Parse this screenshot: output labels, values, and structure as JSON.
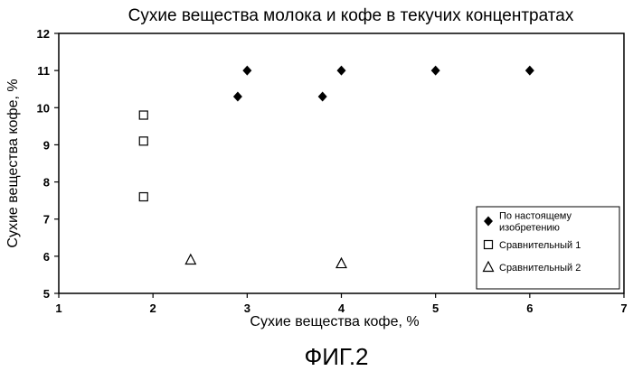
{
  "chart_data": {
    "type": "scatter",
    "title": "Сухие вещества молока и кофе в текучих концентратах",
    "xlabel": "Сухие вещества кофе, %",
    "ylabel": "Сухие вещества кофе, %",
    "xlim": [
      1,
      7
    ],
    "ylim": [
      5,
      12
    ],
    "x_ticks": [
      "1",
      "2",
      "3",
      "4",
      "5",
      "6",
      "7"
    ],
    "y_ticks": [
      "5",
      "6",
      "7",
      "8",
      "9",
      "10",
      "11",
      "12"
    ],
    "grid": false,
    "legend_position": "bottom-right",
    "series": [
      {
        "name": "По настоящему изобретению",
        "legend_lines": [
          "По настоящему",
          "изобретению"
        ],
        "marker": "diamond",
        "points": [
          {
            "x": 2.9,
            "y": 10.3
          },
          {
            "x": 3.0,
            "y": 11.0
          },
          {
            "x": 3.8,
            "y": 10.3
          },
          {
            "x": 4.0,
            "y": 11.0
          },
          {
            "x": 5.0,
            "y": 11.0
          },
          {
            "x": 6.0,
            "y": 11.0
          }
        ]
      },
      {
        "name": "Сравнительный 1",
        "legend_lines": [
          "Сравнительный 1"
        ],
        "marker": "square",
        "points": [
          {
            "x": 1.9,
            "y": 9.8
          },
          {
            "x": 1.9,
            "y": 9.1
          },
          {
            "x": 1.9,
            "y": 7.6
          }
        ]
      },
      {
        "name": "Сравнительный 2",
        "legend_lines": [
          "Сравнительный 2"
        ],
        "marker": "triangle",
        "points": [
          {
            "x": 2.4,
            "y": 5.9
          },
          {
            "x": 4.0,
            "y": 5.8
          }
        ]
      }
    ]
  },
  "figure_caption": "ФИГ.2"
}
